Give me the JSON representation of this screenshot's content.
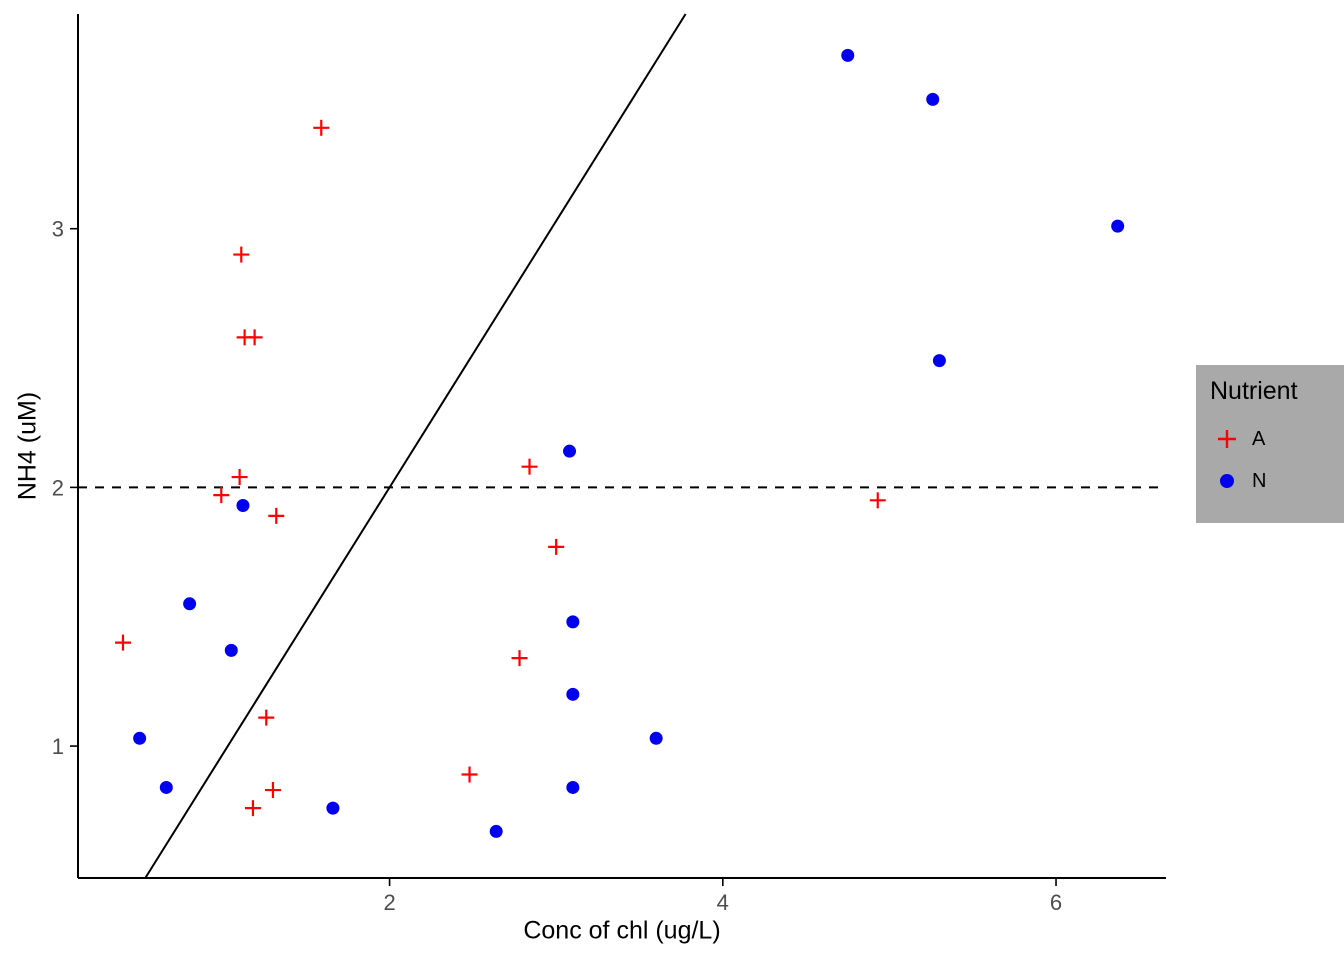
{
  "chart_data": {
    "type": "scatter",
    "title": "",
    "xlabel": "Conc of chl (ug/L)",
    "ylabel": "NH4 (uM)",
    "xlim": [
      0.13,
      6.66
    ],
    "ylim": [
      0.49,
      3.83
    ],
    "xticks": [
      2,
      4,
      6
    ],
    "yticks": [
      1,
      2,
      3
    ],
    "grid": "off",
    "axis_color": "#000000",
    "tick_label_color": "#4D4D4D",
    "legend": {
      "title": "Nutrient",
      "position": "right",
      "background": "#A9A9A9"
    },
    "lines": [
      {
        "name": "regression-line",
        "style": "solid",
        "slope": 1.03,
        "intercept": -0.06,
        "color": "#000000"
      },
      {
        "name": "threshold-line-y2",
        "style": "dashed",
        "y": 2,
        "color": "#000000"
      }
    ],
    "series": [
      {
        "name": "A",
        "marker": "plus",
        "color": "#FF0000",
        "points": [
          [
            1.59,
            3.39
          ],
          [
            1.11,
            2.9
          ],
          [
            1.13,
            2.58
          ],
          [
            1.19,
            2.58
          ],
          [
            1.1,
            2.04
          ],
          [
            0.99,
            1.97
          ],
          [
            1.32,
            1.89
          ],
          [
            2.84,
            2.08
          ],
          [
            3.0,
            1.77
          ],
          [
            4.93,
            1.95
          ],
          [
            0.4,
            1.4
          ],
          [
            2.78,
            1.34
          ],
          [
            1.26,
            1.11
          ],
          [
            2.48,
            0.89
          ],
          [
            1.3,
            0.83
          ],
          [
            1.18,
            0.76
          ]
        ]
      },
      {
        "name": "N",
        "marker": "circle",
        "color": "#0000EE",
        "points": [
          [
            4.75,
            3.67
          ],
          [
            5.26,
            3.5
          ],
          [
            6.37,
            3.01
          ],
          [
            5.3,
            2.49
          ],
          [
            3.08,
            2.14
          ],
          [
            1.12,
            1.93
          ],
          [
            0.8,
            1.55
          ],
          [
            1.05,
            1.37
          ],
          [
            3.1,
            1.48
          ],
          [
            3.1,
            1.2
          ],
          [
            0.5,
            1.03
          ],
          [
            3.6,
            1.03
          ],
          [
            0.66,
            0.84
          ],
          [
            3.1,
            0.84
          ],
          [
            1.66,
            0.76
          ],
          [
            2.64,
            0.67
          ]
        ]
      }
    ]
  }
}
